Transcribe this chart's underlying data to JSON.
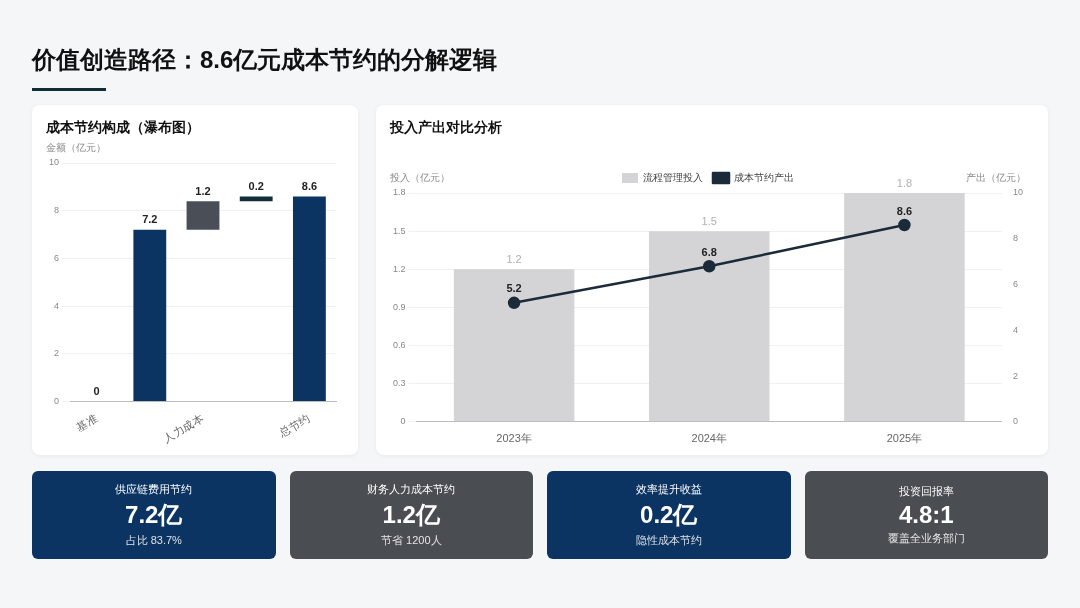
{
  "chart_data": [
    {
      "type": "other",
      "title": "价值创造路径：8.6亿元成本节约的分解逻辑"
    },
    {
      "type": "bar",
      "title": "成本节约构成（瀑布图）",
      "ylabel": "金额（亿元）",
      "categories": [
        "基准",
        null,
        "人力成本",
        null,
        "总节约"
      ],
      "values": [
        0,
        7.2,
        1.2,
        0.2,
        8.6
      ],
      "base": [
        null,
        null,
        7.2,
        8.4,
        null
      ],
      "colors": [
        "#0b3463",
        "#0b3463",
        "#4a4e56",
        "#0f2e3a",
        "#0b3463"
      ],
      "ylim": [
        0,
        10
      ],
      "yticks": [
        0,
        2,
        4,
        6,
        8,
        10
      ],
      "grid": "y",
      "data_labels": true,
      "legend": false
    },
    {
      "type": "bar",
      "title": "投入产出对比分析",
      "ylabel": "投入（亿元）",
      "y2label": "产出（亿元）",
      "categories": [
        "2023年",
        "2024年",
        "2025年"
      ],
      "series": [
        {
          "name": "流程管理投入",
          "type": "bar",
          "color": "#d4d4d6",
          "values": [
            1.2,
            1.5,
            1.8
          ]
        },
        {
          "name": "成本节约产出",
          "type": "line",
          "axis": "y2",
          "color": "#1c2b3a",
          "values": [
            5.2,
            6.8,
            8.6
          ]
        }
      ],
      "ylim": [
        0,
        1.8
      ],
      "yticks": [
        0,
        0.3,
        0.6,
        0.9,
        1.2,
        1.5,
        1.8
      ],
      "y2lim": [
        0,
        10
      ],
      "y2ticks": [
        0,
        2,
        4,
        6,
        8,
        10
      ],
      "grid": "y",
      "legend": "top",
      "marker": "circle",
      "line_style": "solid",
      "data_labels": true
    },
    {
      "type": "other",
      "annotations": [
        "供应链费用节约",
        "7.2亿",
        "占比 83.7%",
        "财务人力成本节约",
        "1.2亿",
        "节省 1200人",
        "效率提升收益",
        "0.2亿",
        "隐性成本节约",
        "投资回报率",
        "4.8:1",
        "覆盖全业务部门"
      ]
    }
  ]
}
